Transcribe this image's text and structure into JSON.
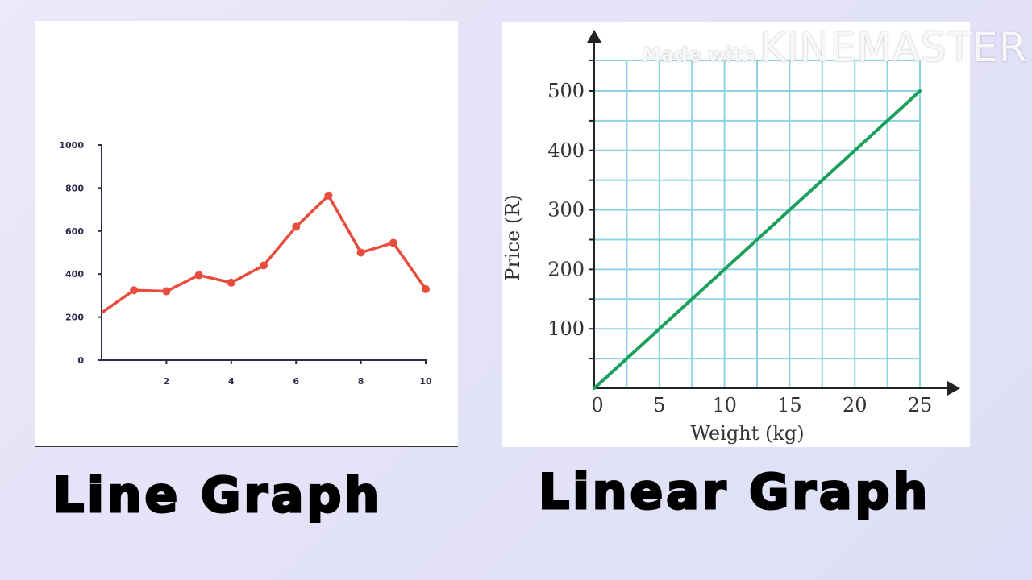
{
  "captions": {
    "left": "Line Graph",
    "right": "Linear Graph"
  },
  "watermark": {
    "prefix": "Made with",
    "brand": "KINEMASTER"
  },
  "chart_data": [
    {
      "type": "line",
      "title": "",
      "xlabel": "",
      "ylabel": "",
      "x": [
        0,
        1,
        2,
        3,
        4,
        5,
        6,
        7,
        8,
        9,
        10
      ],
      "series": [
        {
          "values": [
            220,
            325,
            320,
            395,
            360,
            440,
            620,
            765,
            500,
            545,
            330
          ],
          "color": "#e74c3c"
        }
      ],
      "xlim": [
        0,
        10
      ],
      "ylim": [
        0,
        1000
      ],
      "xticks": [
        2,
        4,
        6,
        8,
        10
      ],
      "yticks": [
        0,
        200,
        400,
        600,
        800,
        1000
      ],
      "markers": true,
      "grid": false
    },
    {
      "type": "line",
      "title": "",
      "xlabel": "Weight (kg)",
      "ylabel": "Price (R)",
      "x": [
        0,
        25
      ],
      "series": [
        {
          "values": [
            0,
            500
          ],
          "color": "#1aa05a"
        }
      ],
      "xlim": [
        0,
        25
      ],
      "ylim": [
        0,
        500
      ],
      "xticks": [
        0,
        5,
        10,
        15,
        20,
        25
      ],
      "yticks": [
        100,
        200,
        300,
        400,
        500
      ],
      "grid": true,
      "grid_color": "#8ed3e2"
    }
  ]
}
